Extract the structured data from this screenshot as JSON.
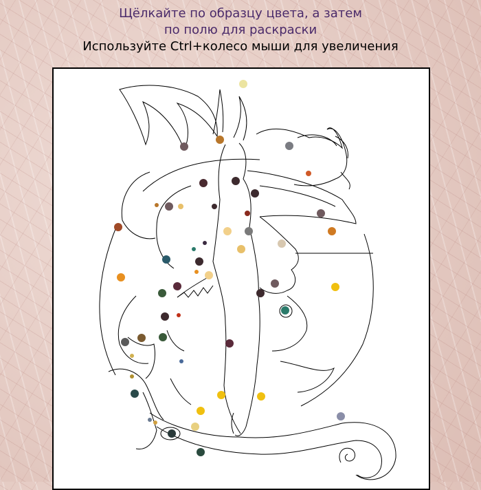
{
  "instructions": {
    "line1": "Щёлкайте по образцу цвета, а затем",
    "line2": "по полю для раскраски",
    "line3": "Используйте Ctrl+колесо мыши для увеличения"
  },
  "colors": {
    "title_text": "#4a2a6a",
    "hint_text": "#000000",
    "canvas_bg": "#ffffff",
    "page_bg": "#e6cfc8"
  },
  "swatch_colors": [
    "#ece4a0",
    "#b8762a",
    "#6f5a5e",
    "#7a7c82",
    "#d05a28",
    "#4a2a30",
    "#d07a22",
    "#e8c06a",
    "#3d2a2e",
    "#8a2a1e",
    "#f2d08a",
    "#7a7a7a",
    "#a04a28",
    "#d8c8b0",
    "#f0c010",
    "#2a7a6a",
    "#3a2a40",
    "#e89020",
    "#2a5a6a",
    "#5a2a3a",
    "#3a5a3a",
    "#c03018",
    "#7a7a40",
    "#5a5a5a",
    "#8a6a20",
    "#8a2a40",
    "#d0b050",
    "#4a6a9a",
    "#b09030",
    "#6a7a90",
    "#e8d080",
    "#2a3a3a",
    "#d0a040",
    "#2a4a4a",
    "#8a8ea8",
    "#2a4a3e"
  ],
  "coloring_picture": "dragon-woman-line-art"
}
